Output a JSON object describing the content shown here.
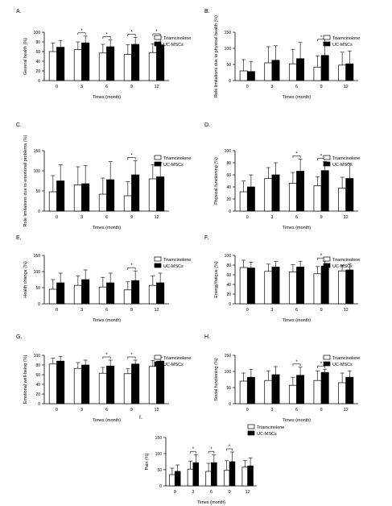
{
  "chart_data": [
    {
      "panel_label": "A.",
      "type": "bar",
      "ylabel": "General health (%)",
      "xlabel": "Times (month)",
      "categories": [
        "0",
        "3",
        "6",
        "9",
        "12"
      ],
      "ylim": [
        0,
        100
      ],
      "yticks": [
        0,
        20,
        40,
        60,
        80,
        100
      ],
      "series": [
        {
          "name": "Triamcinolone",
          "values": [
            60,
            64,
            57,
            54,
            58
          ],
          "errors": [
            18,
            16,
            18,
            20,
            18
          ],
          "color": "#ffffff"
        },
        {
          "name": "UC-MSCs",
          "values": [
            69,
            78,
            70,
            75,
            74
          ],
          "errors": [
            14,
            14,
            14,
            14,
            16
          ],
          "color": "#000000"
        }
      ],
      "significance": [
        {
          "category_index": 1,
          "label": "*"
        },
        {
          "category_index": 2,
          "label": "*"
        },
        {
          "category_index": 3,
          "label": "*"
        },
        {
          "category_index": 4,
          "label": "*"
        }
      ],
      "legend_position": "top-right"
    },
    {
      "panel_label": "B.",
      "type": "bar",
      "ylabel": "Role limitations due to physical health (%)",
      "xlabel": "Times (month)",
      "categories": [
        "0",
        "3",
        "6",
        "9",
        "12"
      ],
      "ylim": [
        0,
        150
      ],
      "yticks": [
        0,
        50,
        100,
        150
      ],
      "series": [
        {
          "name": "Triamcinolone",
          "values": [
            30,
            55,
            52,
            42,
            48
          ],
          "errors": [
            35,
            50,
            45,
            35,
            40
          ],
          "color": "#ffffff"
        },
        {
          "name": "UC-MSCs",
          "values": [
            28,
            63,
            68,
            78,
            52
          ],
          "errors": [
            30,
            45,
            50,
            40,
            40
          ],
          "color": "#000000"
        }
      ],
      "significance": [
        {
          "category_index": 3,
          "label": "*"
        }
      ],
      "legend_position": "top-right"
    },
    {
      "panel_label": "C.",
      "type": "bar",
      "ylabel": "Role limitations due to emotional problems (%)",
      "xlabel": "Times (month)",
      "categories": [
        "0",
        "3",
        "6",
        "9",
        "12"
      ],
      "ylim": [
        0,
        150
      ],
      "yticks": [
        0,
        50,
        100,
        150
      ],
      "series": [
        {
          "name": "Triamcinolone",
          "values": [
            48,
            65,
            42,
            38,
            80
          ],
          "errors": [
            40,
            45,
            40,
            35,
            35
          ],
          "color": "#ffffff"
        },
        {
          "name": "UC-MSCs",
          "values": [
            75,
            68,
            78,
            90,
            85
          ],
          "errors": [
            40,
            45,
            45,
            35,
            35
          ],
          "color": "#000000"
        }
      ],
      "significance": [
        {
          "category_index": 3,
          "label": "*"
        }
      ],
      "legend_position": "top-right"
    },
    {
      "panel_label": "D.",
      "type": "bar",
      "ylabel": "Physical functioning (%)",
      "xlabel": "Times (month)",
      "categories": [
        "0",
        "3",
        "6",
        "9",
        "12"
      ],
      "ylim": [
        0,
        100
      ],
      "yticks": [
        0,
        20,
        40,
        60,
        80,
        100
      ],
      "series": [
        {
          "name": "Triamcinolone",
          "values": [
            32,
            54,
            46,
            42,
            38
          ],
          "errors": [
            18,
            18,
            18,
            15,
            18
          ],
          "color": "#ffffff"
        },
        {
          "name": "UC-MSCs",
          "values": [
            40,
            60,
            66,
            67,
            54
          ],
          "errors": [
            20,
            20,
            20,
            15,
            25
          ],
          "color": "#000000"
        }
      ],
      "significance": [
        {
          "category_index": 2,
          "label": "*"
        },
        {
          "category_index": 3,
          "label": "*"
        }
      ],
      "legend_position": "top-right"
    },
    {
      "panel_label": "E.",
      "type": "bar",
      "ylabel": "Health change (%)",
      "xlabel": "Times (month)",
      "categories": [
        "0",
        "3",
        "6",
        "9",
        "12"
      ],
      "ylim": [
        0,
        150
      ],
      "yticks": [
        0,
        50,
        100,
        150
      ],
      "series": [
        {
          "name": "Triamcinolone",
          "values": [
            45,
            57,
            52,
            43,
            57
          ],
          "errors": [
            30,
            30,
            30,
            25,
            30
          ],
          "color": "#ffffff"
        },
        {
          "name": "UC-MSCs",
          "values": [
            65,
            75,
            65,
            72,
            65
          ],
          "errors": [
            30,
            30,
            30,
            30,
            30
          ],
          "color": "#000000"
        }
      ],
      "significance": [
        {
          "category_index": 3,
          "label": "*"
        }
      ],
      "legend_position": "top-right"
    },
    {
      "panel_label": "F.",
      "type": "bar",
      "ylabel": "Energy/fatigue (%)",
      "xlabel": "Times (month)",
      "categories": [
        "0",
        "3",
        "6",
        "9",
        "12"
      ],
      "ylim": [
        0,
        100
      ],
      "yticks": [
        0,
        20,
        40,
        60,
        80,
        100
      ],
      "series": [
        {
          "name": "Triamcinolone",
          "values": [
            75,
            67,
            66,
            62,
            68
          ],
          "errors": [
            15,
            15,
            15,
            15,
            12
          ],
          "color": "#ffffff"
        },
        {
          "name": "UC-MSCs",
          "values": [
            74,
            76,
            76,
            78,
            70
          ],
          "errors": [
            12,
            12,
            12,
            10,
            12
          ],
          "color": "#000000"
        }
      ],
      "significance": [
        {
          "category_index": 3,
          "label": "*"
        }
      ],
      "legend_position": "top-right"
    },
    {
      "panel_label": "G.",
      "type": "bar",
      "ylabel": "Emotional well-being (%)",
      "xlabel": "Times (month)",
      "categories": [
        "0",
        "3",
        "6",
        "9",
        "12"
      ],
      "ylim": [
        0,
        100
      ],
      "yticks": [
        0,
        20,
        40,
        60,
        80,
        100
      ],
      "series": [
        {
          "name": "Triamcinolone",
          "values": [
            82,
            73,
            63,
            62,
            77
          ],
          "errors": [
            12,
            12,
            12,
            10,
            12
          ],
          "color": "#ffffff"
        },
        {
          "name": "UC-MSCs",
          "values": [
            88,
            80,
            78,
            82,
            88
          ],
          "errors": [
            10,
            10,
            12,
            8,
            8
          ],
          "color": "#000000"
        }
      ],
      "significance": [
        {
          "category_index": 2,
          "label": "*"
        },
        {
          "category_index": 3,
          "label": "*"
        }
      ],
      "legend_position": "top-right"
    },
    {
      "panel_label": "H.",
      "type": "bar",
      "ylabel": "Social functioning (%)",
      "xlabel": "Times (month)",
      "categories": [
        "0",
        "3",
        "6",
        "9",
        "12"
      ],
      "ylim": [
        0,
        150
      ],
      "yticks": [
        0,
        50,
        100,
        150
      ],
      "series": [
        {
          "name": "Triamcinolone",
          "values": [
            70,
            72,
            57,
            72,
            65
          ],
          "errors": [
            25,
            30,
            25,
            30,
            30
          ],
          "color": "#ffffff"
        },
        {
          "name": "UC-MSCs",
          "values": [
            82,
            90,
            88,
            97,
            82
          ],
          "errors": [
            25,
            25,
            25,
            10,
            20
          ],
          "color": "#000000"
        }
      ],
      "significance": [
        {
          "category_index": 2,
          "label": "*"
        },
        {
          "category_index": 3,
          "label": "*"
        }
      ],
      "legend_position": "top-right"
    },
    {
      "panel_label": "I.",
      "type": "bar",
      "ylabel": "Pain (%)",
      "xlabel": "Times (month)",
      "categories": [
        "0",
        "3",
        "6",
        "9",
        "12"
      ],
      "ylim": [
        0,
        150
      ],
      "yticks": [
        0,
        50,
        100,
        150
      ],
      "series": [
        {
          "name": "Triamcinolone",
          "values": [
            35,
            52,
            45,
            48,
            58
          ],
          "errors": [
            20,
            25,
            25,
            30,
            20
          ],
          "color": "#ffffff"
        },
        {
          "name": "UC-MSCs",
          "values": [
            45,
            72,
            72,
            75,
            62
          ],
          "errors": [
            20,
            25,
            25,
            30,
            25
          ],
          "color": "#000000"
        }
      ],
      "significance": [
        {
          "category_index": 1,
          "label": "*"
        },
        {
          "category_index": 2,
          "label": "*"
        },
        {
          "category_index": 3,
          "label": "*"
        }
      ],
      "legend_position": "top-right"
    }
  ]
}
